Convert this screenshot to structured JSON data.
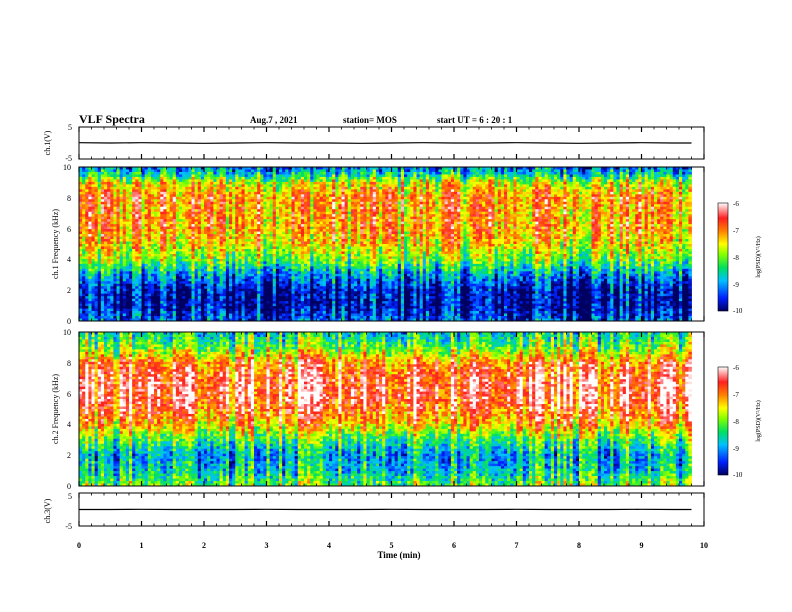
{
  "header": {
    "title": "VLF Spectra",
    "date": "Aug.7 , 2021",
    "station": "station= MOS",
    "start_ut": "start UT = 6 : 20 : 1"
  },
  "colors": {
    "low": "#000080",
    "mid_low": "#0050ff",
    "mid": "#00e0c0",
    "mid_high": "#00d000",
    "high_low": "#ffff00",
    "high": "#ff2020",
    "max": "#ffffff"
  },
  "chart_data": [
    {
      "id": "ch1_waveform",
      "type": "line",
      "ylabel": "ch.1(V)",
      "xlim": [
        0,
        10
      ],
      "ylim": [
        -5,
        5
      ],
      "yticks": [
        "5",
        "-5"
      ],
      "x": [
        0,
        0.5,
        1,
        1.5,
        2,
        2.5,
        3,
        3.5,
        4,
        4.5,
        5,
        5.5,
        6,
        6.5,
        7,
        7.5,
        8,
        8.5,
        9,
        9.5,
        9.8
      ],
      "y": [
        0.1,
        0,
        0.1,
        0,
        -0.1,
        0,
        0.1,
        0,
        0,
        -0.1,
        0,
        0.1,
        0,
        0,
        0.1,
        0,
        -0.1,
        0,
        0.1,
        0,
        0
      ],
      "grid": false
    },
    {
      "id": "ch1_spectrogram",
      "type": "heatmap",
      "ylabel": "ch.1 Frequency (kHz)",
      "xlim": [
        0,
        10
      ],
      "ylim": [
        0,
        10
      ],
      "yticks": [
        "0",
        "2",
        "4",
        "6",
        "8",
        "10"
      ],
      "colorbar": {
        "label": "log(PSD)(V²/Hz)",
        "range": [
          -10,
          -6
        ],
        "ticks": [
          "-6",
          "-7",
          "-8",
          "-9",
          "-10"
        ]
      },
      "data_extent_x": [
        0,
        9.8
      ],
      "freq_profile_khz": [
        0,
        1,
        2,
        3,
        4,
        5,
        6,
        7,
        8,
        9,
        9.5,
        10
      ],
      "mean_log_psd": [
        -9.3,
        -9.8,
        -9.7,
        -9.0,
        -8.0,
        -7.4,
        -7.1,
        -7.1,
        -7.0,
        -7.6,
        -8.6,
        -9.2
      ]
    },
    {
      "id": "ch2_spectrogram",
      "type": "heatmap",
      "ylabel": "ch.2 Frequency (kHz)",
      "xlim": [
        0,
        10
      ],
      "ylim": [
        0,
        10
      ],
      "yticks": [
        "0",
        "2",
        "4",
        "6",
        "8",
        "10"
      ],
      "colorbar": {
        "label": "log(PSD)(V²/Hz)",
        "range": [
          -10,
          -6
        ],
        "ticks": [
          "-6",
          "-7",
          "-8",
          "-9",
          "-10"
        ]
      },
      "data_extent_x": [
        0,
        9.8
      ],
      "freq_profile_khz": [
        0,
        1,
        2,
        3,
        4,
        5,
        6,
        7,
        8,
        9,
        10
      ],
      "mean_log_psd": [
        -8.0,
        -8.7,
        -8.9,
        -8.2,
        -7.2,
        -6.7,
        -6.4,
        -6.5,
        -6.9,
        -8.0,
        -8.6
      ]
    },
    {
      "id": "ch3_waveform",
      "type": "line",
      "ylabel": "ch.3(V)",
      "xlim": [
        0,
        10
      ],
      "ylim": [
        -5,
        5
      ],
      "yticks": [
        "5",
        "-5"
      ],
      "x": [
        0,
        0.5,
        1,
        1.5,
        2,
        2.5,
        3,
        3.5,
        4,
        4.5,
        5,
        5.5,
        6,
        6.5,
        7,
        7.5,
        8,
        8.5,
        9,
        9.5,
        9.8
      ],
      "y": [
        0,
        0,
        0.05,
        0,
        0,
        0,
        0.05,
        0,
        0,
        0,
        0.05,
        0,
        0,
        0,
        0.05,
        0,
        0,
        0,
        0.05,
        0,
        0
      ],
      "grid": false
    }
  ],
  "xaxis": {
    "label": "Time (min)",
    "ticks": [
      "0",
      "1",
      "2",
      "3",
      "4",
      "5",
      "6",
      "7",
      "8",
      "9",
      "10"
    ]
  }
}
